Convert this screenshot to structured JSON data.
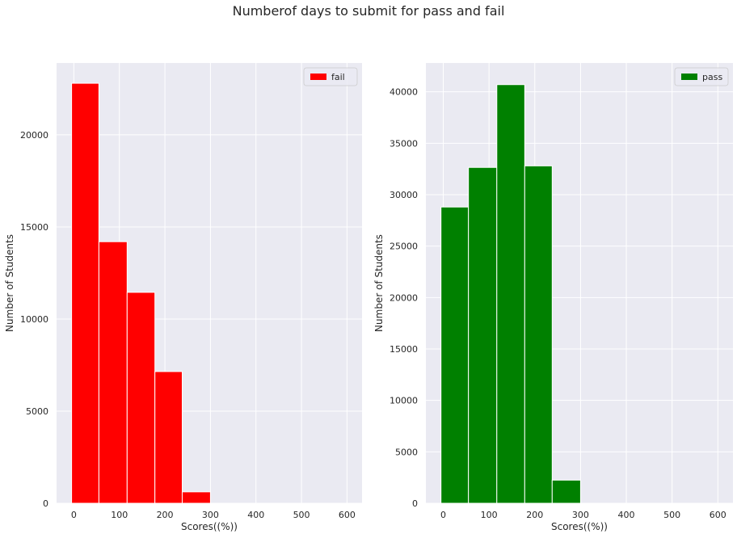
{
  "figure": {
    "title": "Numberof days to submit for pass and fail"
  },
  "chart_data": [
    {
      "type": "bar",
      "subplot": "left",
      "title": "",
      "xlabel": "Scores((%))",
      "ylabel": "Number of Students",
      "xlim": [
        -38,
        633
      ],
      "ylim": [
        0,
        23900
      ],
      "xticks": [
        0,
        100,
        200,
        300,
        400,
        500,
        600
      ],
      "yticks": [
        0,
        5000,
        10000,
        15000,
        20000
      ],
      "grid": true,
      "legend": {
        "position": "top-right",
        "entries": [
          "fail"
        ]
      },
      "series": [
        {
          "name": "fail",
          "color": "#ff0000",
          "bins": [
            {
              "x0": -5,
              "x1": 55,
              "value": 22800
            },
            {
              "x0": 55,
              "x1": 117,
              "value": 14200
            },
            {
              "x0": 117,
              "x1": 178,
              "value": 11450
            },
            {
              "x0": 178,
              "x1": 238,
              "value": 7150
            },
            {
              "x0": 238,
              "x1": 300,
              "value": 620
            }
          ]
        }
      ]
    },
    {
      "type": "bar",
      "subplot": "right",
      "title": "",
      "xlabel": "Scores((%))",
      "ylabel": "Number of Students",
      "xlim": [
        -38,
        633
      ],
      "ylim": [
        0,
        42800
      ],
      "xticks": [
        0,
        100,
        200,
        300,
        400,
        500,
        600
      ],
      "yticks": [
        0,
        5000,
        10000,
        15000,
        20000,
        25000,
        30000,
        35000,
        40000
      ],
      "grid": true,
      "legend": {
        "position": "top-right",
        "entries": [
          "pass"
        ]
      },
      "series": [
        {
          "name": "pass",
          "color": "#008000",
          "bins": [
            {
              "x0": -5,
              "x1": 55,
              "value": 28800
            },
            {
              "x0": 55,
              "x1": 117,
              "value": 32650
            },
            {
              "x0": 117,
              "x1": 178,
              "value": 40700
            },
            {
              "x0": 178,
              "x1": 238,
              "value": 32800
            },
            {
              "x0": 238,
              "x1": 300,
              "value": 2250
            }
          ]
        }
      ]
    }
  ]
}
